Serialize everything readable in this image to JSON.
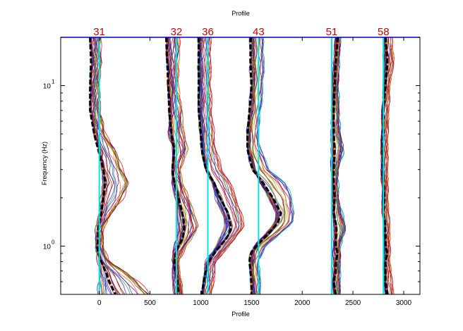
{
  "chart_data": {
    "type": "line",
    "title": "Profile",
    "xlabel": "Profile",
    "ylabel": "Frequency (Hz)",
    "y_scale": "log",
    "xlim": [
      -380,
      3160
    ],
    "ylim": [
      0.5,
      20
    ],
    "grid": false,
    "x_ticks": [
      {
        "value": 0,
        "label": "0"
      },
      {
        "value": 500,
        "label": "500"
      },
      {
        "value": 1000,
        "label": "1000"
      },
      {
        "value": 1500,
        "label": "1500"
      },
      {
        "value": 2000,
        "label": "2000"
      },
      {
        "value": 2500,
        "label": "2500"
      },
      {
        "value": 3000,
        "label": "3000"
      }
    ],
    "y_ticks": [
      {
        "value": 1,
        "base": "10",
        "exp": "0"
      },
      {
        "value": 10,
        "base": "10",
        "exp": "1"
      }
    ],
    "minor_y_ticks": [
      0.5,
      0.6,
      0.7,
      0.8,
      0.9,
      2,
      3,
      4,
      5,
      6,
      7,
      8,
      9,
      20
    ],
    "top_line_freq": 20,
    "stations": [
      {
        "label": "31",
        "position": 0,
        "mean_curve": [
          [
            20,
            -90
          ],
          [
            14,
            -80
          ],
          [
            10,
            -90
          ],
          [
            7,
            -90
          ],
          [
            5,
            -50
          ],
          [
            4,
            -10
          ],
          [
            3,
            40
          ],
          [
            2.5,
            60
          ],
          [
            2,
            40
          ],
          [
            1.6,
            20
          ],
          [
            1.3,
            -10
          ],
          [
            1.1,
            -10
          ],
          [
            1,
            -20
          ],
          [
            0.9,
            -10
          ],
          [
            0.8,
            20
          ],
          [
            0.7,
            60
          ],
          [
            0.6,
            100
          ],
          [
            0.5,
            160
          ]
        ],
        "spread_low": [
          [
            20,
            -20
          ],
          [
            14,
            -20
          ],
          [
            10,
            -40
          ],
          [
            7,
            -40
          ],
          [
            5,
            -20
          ],
          [
            4,
            20
          ],
          [
            3,
            30
          ],
          [
            2.5,
            40
          ],
          [
            2,
            20
          ],
          [
            1.6,
            0
          ],
          [
            1.3,
            -30
          ],
          [
            1,
            -30
          ],
          [
            0.8,
            -10
          ],
          [
            0.7,
            0
          ],
          [
            0.6,
            -10
          ],
          [
            0.5,
            -20
          ]
        ],
        "spread_high": [
          [
            20,
            20
          ],
          [
            14,
            20
          ],
          [
            10,
            0
          ],
          [
            7,
            10
          ],
          [
            5,
            60
          ],
          [
            4,
            160
          ],
          [
            3,
            240
          ],
          [
            2.5,
            300
          ],
          [
            2,
            250
          ],
          [
            1.6,
            120
          ],
          [
            1.3,
            40
          ],
          [
            1,
            30
          ],
          [
            0.8,
            100
          ],
          [
            0.7,
            250
          ],
          [
            0.6,
            400
          ],
          [
            0.5,
            520
          ]
        ]
      },
      {
        "label": "32",
        "position": 760,
        "mean_curve": [
          [
            20,
            -100
          ],
          [
            14,
            -90
          ],
          [
            10,
            -80
          ],
          [
            7,
            -70
          ],
          [
            5,
            -50
          ],
          [
            4,
            -20
          ],
          [
            3,
            -40
          ],
          [
            2.5,
            -20
          ],
          [
            2,
            20
          ],
          [
            1.6,
            60
          ],
          [
            1.3,
            80
          ],
          [
            1.1,
            60
          ],
          [
            1,
            20
          ],
          [
            0.9,
            -10
          ],
          [
            0.8,
            -20
          ],
          [
            0.7,
            -10
          ],
          [
            0.6,
            10
          ],
          [
            0.5,
            20
          ]
        ],
        "spread_low": [
          [
            20,
            -60
          ],
          [
            14,
            -50
          ],
          [
            10,
            -30
          ],
          [
            7,
            -30
          ],
          [
            5,
            -80
          ],
          [
            4,
            -30
          ],
          [
            3,
            -30
          ],
          [
            2.5,
            -40
          ],
          [
            2,
            -10
          ],
          [
            1.6,
            10
          ],
          [
            1.3,
            20
          ],
          [
            1,
            -20
          ],
          [
            0.8,
            -40
          ],
          [
            0.5,
            -30
          ]
        ],
        "spread_high": [
          [
            20,
            40
          ],
          [
            14,
            30
          ],
          [
            10,
            20
          ],
          [
            7,
            60
          ],
          [
            5,
            80
          ],
          [
            4,
            120
          ],
          [
            3,
            40
          ],
          [
            2.5,
            60
          ],
          [
            2,
            120
          ],
          [
            1.6,
            180
          ],
          [
            1.3,
            220
          ],
          [
            1,
            100
          ],
          [
            0.8,
            20
          ],
          [
            0.5,
            60
          ]
        ]
      },
      {
        "label": "36",
        "position": 1070,
        "mean_curve": [
          [
            20,
            -90
          ],
          [
            14,
            -90
          ],
          [
            10,
            -90
          ],
          [
            7,
            -90
          ],
          [
            5,
            -70
          ],
          [
            4,
            -60
          ],
          [
            3,
            -20
          ],
          [
            2.5,
            60
          ],
          [
            2,
            120
          ],
          [
            1.6,
            200
          ],
          [
            1.3,
            230
          ],
          [
            1.15,
            200
          ],
          [
            1,
            120
          ],
          [
            0.9,
            60
          ],
          [
            0.8,
            10
          ],
          [
            0.7,
            -20
          ],
          [
            0.6,
            -40
          ],
          [
            0.5,
            -60
          ]
        ],
        "spread_low": [
          [
            20,
            -60
          ],
          [
            14,
            -60
          ],
          [
            10,
            -50
          ],
          [
            7,
            -50
          ],
          [
            5,
            -40
          ],
          [
            4,
            -30
          ],
          [
            3,
            -10
          ],
          [
            2.5,
            40
          ],
          [
            2,
            80
          ],
          [
            1.6,
            140
          ],
          [
            1.3,
            170
          ],
          [
            1,
            80
          ],
          [
            0.8,
            -20
          ],
          [
            0.5,
            -40
          ]
        ],
        "spread_high": [
          [
            20,
            30
          ],
          [
            14,
            30
          ],
          [
            10,
            30
          ],
          [
            7,
            40
          ],
          [
            5,
            60
          ],
          [
            4,
            80
          ],
          [
            3,
            140
          ],
          [
            2.5,
            220
          ],
          [
            2,
            280
          ],
          [
            1.6,
            330
          ],
          [
            1.3,
            360
          ],
          [
            1,
            200
          ],
          [
            0.8,
            80
          ],
          [
            0.5,
            40
          ]
        ]
      },
      {
        "label": "43",
        "position": 1570,
        "mean_curve": [
          [
            20,
            -80
          ],
          [
            14,
            -80
          ],
          [
            10,
            -70
          ],
          [
            7,
            -90
          ],
          [
            5,
            -110
          ],
          [
            4,
            -110
          ],
          [
            3,
            -60
          ],
          [
            2.5,
            40
          ],
          [
            2,
            140
          ],
          [
            1.6,
            220
          ],
          [
            1.4,
            190
          ],
          [
            1.2,
            100
          ],
          [
            1,
            -20
          ],
          [
            0.9,
            -80
          ],
          [
            0.8,
            -90
          ],
          [
            0.7,
            -80
          ],
          [
            0.6,
            -70
          ],
          [
            0.5,
            -70
          ]
        ],
        "spread_low": [
          [
            20,
            -50
          ],
          [
            14,
            -40
          ],
          [
            10,
            -40
          ],
          [
            7,
            -60
          ],
          [
            5,
            -90
          ],
          [
            4,
            -80
          ],
          [
            3,
            -40
          ],
          [
            2.5,
            20
          ],
          [
            2,
            100
          ],
          [
            1.6,
            180
          ],
          [
            1.4,
            160
          ],
          [
            1.2,
            80
          ],
          [
            1,
            -40
          ],
          [
            0.8,
            -60
          ],
          [
            0.5,
            -40
          ]
        ],
        "spread_high": [
          [
            20,
            40
          ],
          [
            14,
            50
          ],
          [
            10,
            40
          ],
          [
            7,
            20
          ],
          [
            5,
            -10
          ],
          [
            4,
            20
          ],
          [
            3,
            100
          ],
          [
            2.5,
            250
          ],
          [
            2,
            330
          ],
          [
            1.6,
            340
          ],
          [
            1.4,
            330
          ],
          [
            1.2,
            220
          ],
          [
            1,
            60
          ],
          [
            0.8,
            0
          ],
          [
            0.5,
            20
          ]
        ]
      },
      {
        "label": "51",
        "position": 2290,
        "mean_curve": [
          [
            20,
            60
          ],
          [
            14,
            40
          ],
          [
            10,
            30
          ],
          [
            7,
            20
          ],
          [
            5,
            20
          ],
          [
            4,
            30
          ],
          [
            3,
            20
          ],
          [
            2.5,
            20
          ],
          [
            2,
            30
          ],
          [
            1.6,
            20
          ],
          [
            1.3,
            50
          ],
          [
            1.1,
            40
          ],
          [
            1,
            40
          ],
          [
            0.9,
            60
          ],
          [
            0.8,
            40
          ],
          [
            0.7,
            40
          ],
          [
            0.6,
            20
          ],
          [
            0.5,
            40
          ]
        ],
        "spread_low": [
          [
            20,
            40
          ],
          [
            10,
            10
          ],
          [
            5,
            0
          ],
          [
            3,
            0
          ],
          [
            2,
            10
          ],
          [
            1.3,
            30
          ],
          [
            1,
            20
          ],
          [
            0.8,
            20
          ],
          [
            0.5,
            20
          ]
        ],
        "spread_high": [
          [
            20,
            80
          ],
          [
            10,
            60
          ],
          [
            5,
            80
          ],
          [
            4,
            120
          ],
          [
            3,
            60
          ],
          [
            2,
            60
          ],
          [
            1.3,
            140
          ],
          [
            1,
            80
          ],
          [
            0.8,
            80
          ],
          [
            0.5,
            80
          ]
        ]
      },
      {
        "label": "58",
        "position": 2800,
        "mean_curve": [
          [
            20,
            20
          ],
          [
            14,
            40
          ],
          [
            10,
            20
          ],
          [
            7,
            0
          ],
          [
            5,
            0
          ],
          [
            4,
            -10
          ],
          [
            3,
            0
          ],
          [
            2.5,
            0
          ],
          [
            2,
            10
          ],
          [
            1.6,
            0
          ],
          [
            1.3,
            20
          ],
          [
            1.1,
            20
          ],
          [
            1,
            20
          ],
          [
            0.9,
            40
          ],
          [
            0.8,
            20
          ],
          [
            0.7,
            20
          ],
          [
            0.6,
            20
          ],
          [
            0.5,
            40
          ]
        ],
        "spread_low": [
          [
            20,
            0
          ],
          [
            10,
            0
          ],
          [
            5,
            -20
          ],
          [
            3,
            -20
          ],
          [
            2,
            -10
          ],
          [
            1.3,
            0
          ],
          [
            1,
            0
          ],
          [
            0.8,
            0
          ],
          [
            0.5,
            20
          ]
        ],
        "spread_high": [
          [
            20,
            80
          ],
          [
            14,
            100
          ],
          [
            10,
            60
          ],
          [
            5,
            40
          ],
          [
            3,
            40
          ],
          [
            2,
            40
          ],
          [
            1.3,
            60
          ],
          [
            1,
            60
          ],
          [
            0.8,
            60
          ],
          [
            0.5,
            100
          ]
        ]
      }
    ],
    "colors": {
      "station_line": "#00e5e5",
      "station_label": "#cc0000",
      "top_line": "#0000cc",
      "mean_curve": "#000000",
      "curve_palette": [
        "#0000aa",
        "#1a1aff",
        "#3333cc",
        "#00aaaa",
        "#2ca02c",
        "#d4a017",
        "#ff7f0e",
        "#e64a19",
        "#cc0000",
        "#990000",
        "#800080",
        "#b22222"
      ]
    }
  }
}
